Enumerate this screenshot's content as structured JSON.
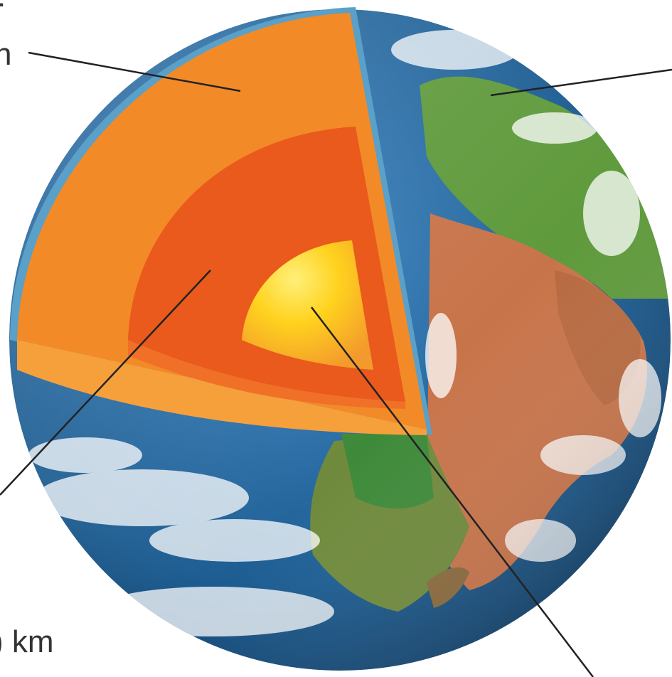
{
  "labels": {
    "top_left_fragment": ":",
    "mantle_fragment": "n",
    "bottom_left_fragment": ") km"
  },
  "layers": [
    "crust",
    "mantle",
    "outer-core",
    "inner-core"
  ],
  "colors": {
    "mantle": "#f28a28",
    "outer_core": "#ea5a1c",
    "inner_core": "#ffd21e",
    "ocean": "#1d5d92",
    "land": "#5f9a3c",
    "desert": "#c8744a",
    "crust_rim": "#5aa0c8",
    "leader_line": "#222222"
  }
}
